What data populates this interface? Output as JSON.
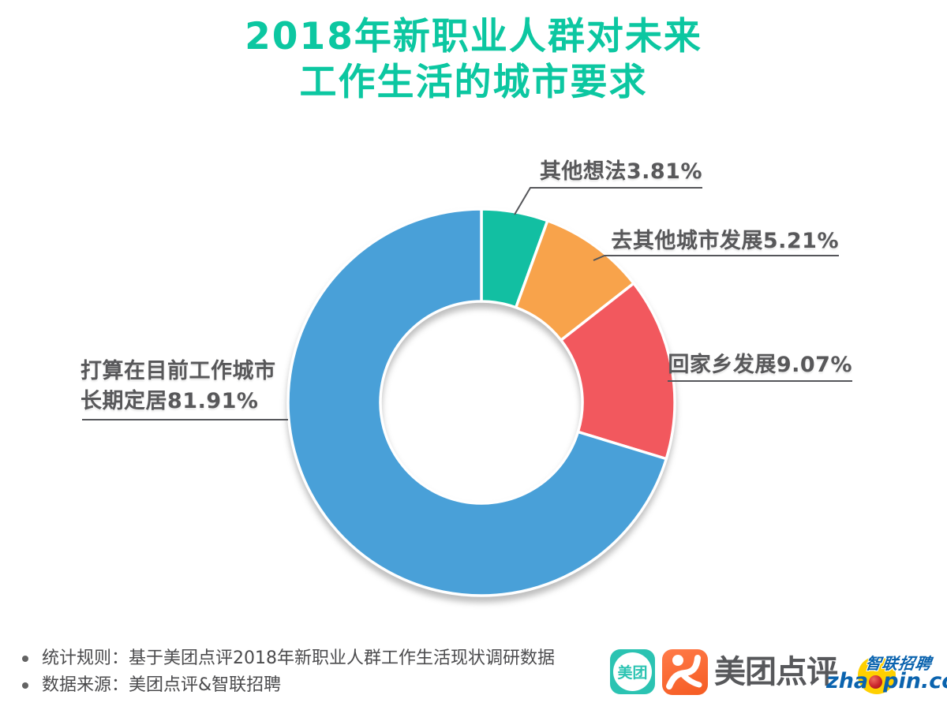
{
  "title": {
    "line1": "2018年新职业人群对未来",
    "line2": "工作生活的城市要求"
  },
  "chart_data": {
    "type": "pie",
    "subtype": "donut",
    "title": "2018年新职业人群对未来工作生活的城市要求",
    "unit": "percent",
    "direction": "clockwise",
    "start_angle": "12-oclock",
    "inner_radius_ratio": 0.52,
    "segments": [
      {
        "label": "其他想法",
        "value": 3.81,
        "color": "#12bfa2"
      },
      {
        "label": "去其他城市发展",
        "value": 5.21,
        "color": "#f8a34b"
      },
      {
        "label": "回家乡发展",
        "value": 9.07,
        "color": "#f2585e"
      },
      {
        "label": "打算在目前工作城市长期定居",
        "value": 81.91,
        "color": "#49a0d8"
      }
    ],
    "display_spans_deg": [
      20,
      32,
      55,
      253
    ],
    "legend": "none",
    "callout_labels": [
      "其他想法3.81%",
      "去其他城市发展5.21%",
      "回家乡发展9.07%",
      "打算在目前工作城市长期定居81.91%"
    ]
  },
  "callouts": {
    "other_ideas": "其他想法3.81%",
    "other_city": "去其他城市发展5.21%",
    "hometown": "回家乡发展9.07%",
    "stay_line1": "打算在目前工作城市",
    "stay_line2": "长期定居81.91%"
  },
  "footer": {
    "notes": [
      "统计规则：基于美团点评2018年新职业人群工作生活现状调研数据",
      "数据来源：美团点评&智联招聘"
    ]
  },
  "logos": {
    "meituan_badge_text": "美团",
    "brand_name": "美团点评",
    "zhaopin_pre": "zha",
    "zhaopin_post": "pin.com",
    "zhaopin_cn": "智联招聘"
  },
  "colors": {
    "title": "#0cc7a1",
    "label_text": "#58585a",
    "leader_line": "#55565a",
    "footer_text": "#4b4b4d",
    "segment_teal": "#12bfa2",
    "segment_orange": "#f8a34b",
    "segment_red": "#f2585e",
    "segment_blue": "#49a0d8",
    "meituan_teal": "#2bc3b2",
    "dianping_orange": "#fb6333",
    "zhaopin_blue": "#0a63ae",
    "zhaopin_yellow": "#ffd000",
    "zhaopin_red": "#c9242c"
  }
}
